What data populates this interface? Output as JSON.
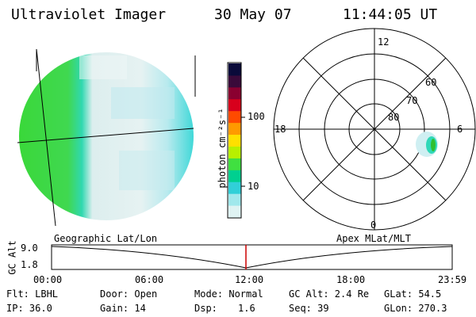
{
  "header": {
    "instrument": "Ultraviolet Imager",
    "date": "30 May 07",
    "time": "11:44:05 UT"
  },
  "colorbar": {
    "unit_label": "photon cm⁻²s⁻¹",
    "ticks": [
      "100",
      "10"
    ],
    "colors": [
      "#0a0a3a",
      "#3a0a3a",
      "#8a0030",
      "#d8001c",
      "#ff4a00",
      "#ff9a00",
      "#ffe000",
      "#b8f000",
      "#40e040",
      "#00d090",
      "#30d0d8",
      "#a0e8ec",
      "#dff3f3"
    ]
  },
  "polar": {
    "mlt_labels": {
      "top": "12",
      "left": "18",
      "right": "6",
      "bottom": "0"
    },
    "lat_labels": [
      "60",
      "70",
      "80"
    ]
  },
  "timeline": {
    "left_label": "Geographic Lat/Lon",
    "right_label": "Apex MLat/MLT",
    "axis_title": "GC Alt",
    "y_ticks": [
      "9.0",
      "1.8"
    ],
    "x_ticks": [
      "00:00",
      "06:00",
      "12:00",
      "18:00",
      "23:59"
    ]
  },
  "status": {
    "flt": "Flt: LBHL",
    "ip": "IP: 36.0",
    "door": "Door: Open",
    "gain": "Gain: 14",
    "mode": "Mode: Normal",
    "dsp_label": "Dsp:",
    "dsp_value": "1.6",
    "gc_alt": "GC Alt: 2.4 Re",
    "seq": "Seq: 39",
    "glat": "GLat:  54.5",
    "glon": "GLon: 270.3"
  }
}
